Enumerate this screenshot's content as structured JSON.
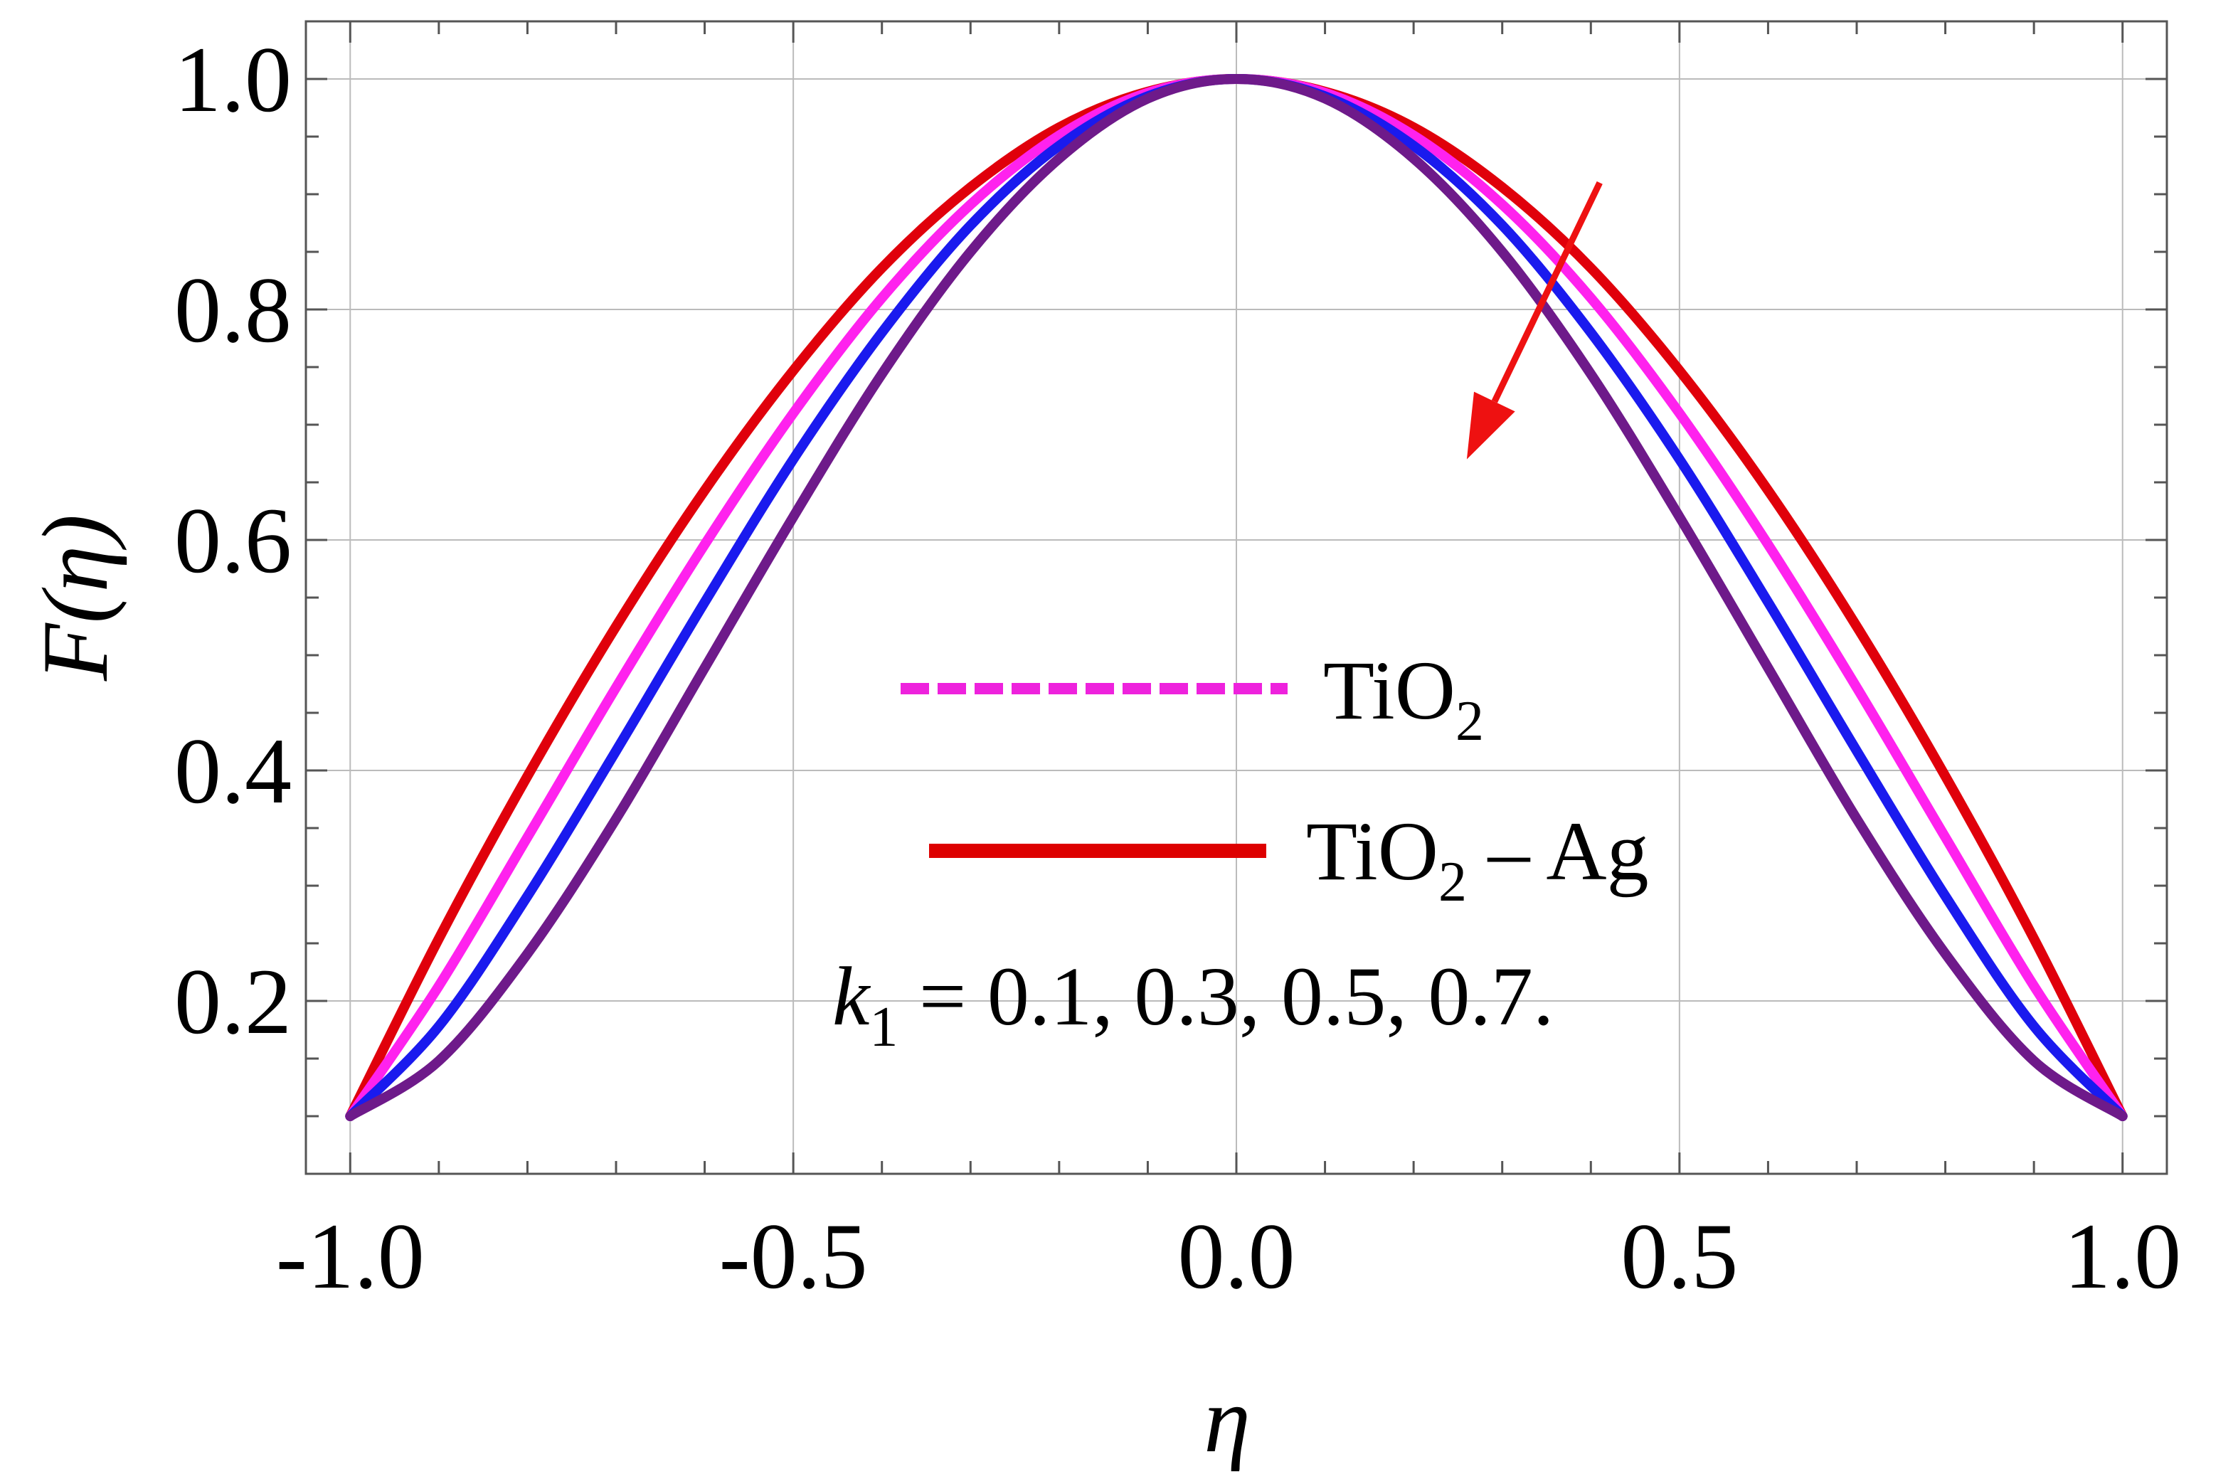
{
  "chart_data": {
    "type": "line",
    "title": "",
    "xlabel": "η",
    "ylabel": "F(η)",
    "xlim": [
      -1.05,
      1.05
    ],
    "ylim": [
      0.05,
      1.05
    ],
    "grid": true,
    "x_ticks": [
      "-1.0",
      "-0.5",
      "0.0",
      "0.5",
      "1.0"
    ],
    "x_tick_values": [
      -1.0,
      -0.5,
      0.0,
      0.5,
      1.0
    ],
    "y_ticks": [
      "0.2",
      "0.4",
      "0.6",
      "0.8",
      "1.0"
    ],
    "y_tick_values": [
      0.2,
      0.4,
      0.6,
      0.8,
      1.0
    ],
    "x": [
      -1.0,
      -0.9,
      -0.8,
      -0.7,
      -0.6,
      -0.5,
      -0.4,
      -0.3,
      -0.2,
      -0.1,
      0.0,
      0.1,
      0.2,
      0.3,
      0.4,
      0.5,
      0.6,
      0.7,
      0.8,
      0.9,
      1.0
    ],
    "series": [
      {
        "color": "#e0000b",
        "values": [
          0.1,
          0.254,
          0.395,
          0.525,
          0.643,
          0.747,
          0.836,
          0.906,
          0.958,
          0.989,
          1.0,
          0.989,
          0.958,
          0.906,
          0.836,
          0.747,
          0.643,
          0.525,
          0.395,
          0.254,
          0.1
        ]
      },
      {
        "color": "#ff22ee",
        "values": [
          0.1,
          0.213,
          0.342,
          0.472,
          0.596,
          0.71,
          0.81,
          0.891,
          0.951,
          0.988,
          1.0,
          0.988,
          0.951,
          0.891,
          0.81,
          0.71,
          0.596,
          0.472,
          0.342,
          0.213,
          0.1
        ]
      },
      {
        "color": "#1a1aee",
        "values": [
          0.1,
          0.178,
          0.291,
          0.417,
          0.546,
          0.67,
          0.78,
          0.873,
          0.942,
          0.985,
          1.0,
          0.985,
          0.942,
          0.873,
          0.78,
          0.67,
          0.546,
          0.417,
          0.291,
          0.178,
          0.1
        ]
      },
      {
        "color": "#6e1a8a",
        "values": [
          0.1,
          0.148,
          0.241,
          0.358,
          0.489,
          0.62,
          0.744,
          0.85,
          0.931,
          0.983,
          1.0,
          0.983,
          0.931,
          0.85,
          0.744,
          0.62,
          0.489,
          0.358,
          0.241,
          0.148,
          0.1
        ]
      }
    ],
    "legend": [
      {
        "label": "TiO",
        "sub": "2",
        "suffix": "",
        "style": "dashed",
        "color": "#ee22dd"
      },
      {
        "label": "TiO",
        "sub": "2",
        "suffix": " – Ag",
        "style": "solid",
        "color": "#dd0000"
      }
    ],
    "annotation": {
      "k_symbol": "k",
      "k_sub": "1",
      "text": " = 0.1, 0.3, 0.5, 0.7.",
      "arrow": {
        "color": "#ee1111",
        "from": [
          0.41,
          0.91
        ],
        "to": [
          0.26,
          0.67
        ],
        "meaning": "increasing k1"
      }
    }
  }
}
